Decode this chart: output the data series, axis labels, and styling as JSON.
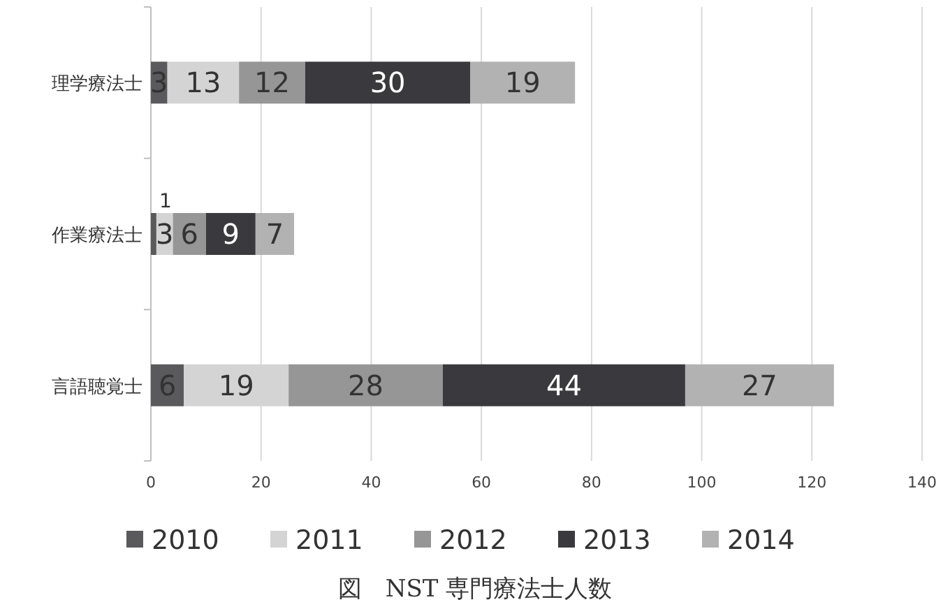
{
  "chart_data": {
    "type": "bar",
    "orientation": "horizontal",
    "stacked": true,
    "title": "図　NST 専門療法士人数",
    "categories": [
      "理学療法士",
      "作業療法士",
      "言語聴覚士"
    ],
    "series": [
      {
        "name": "2010",
        "color": "#5a5a5c",
        "values": [
          3,
          1,
          6
        ]
      },
      {
        "name": "2011",
        "color": "#d4d4d4",
        "values": [
          13,
          3,
          19
        ]
      },
      {
        "name": "2012",
        "color": "#969696",
        "values": [
          12,
          6,
          28
        ]
      },
      {
        "name": "2013",
        "color": "#3a3a3e",
        "values": [
          30,
          9,
          44
        ]
      },
      {
        "name": "2014",
        "color": "#b2b2b2",
        "values": [
          19,
          7,
          27
        ]
      }
    ],
    "xlim": [
      0,
      140
    ],
    "xticks": [
      0,
      20,
      40,
      60,
      80,
      100,
      120,
      140
    ],
    "grid": "x",
    "legend": "bottom",
    "data_labels": true
  }
}
